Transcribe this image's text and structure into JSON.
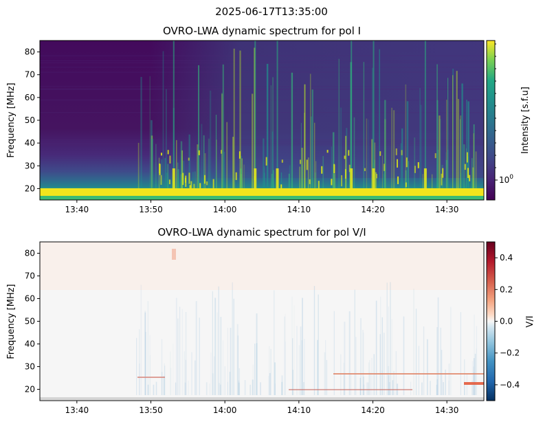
{
  "figure": {
    "suptitle": "2025-06-17T13:35:00"
  },
  "chart_data": [
    {
      "type": "heatmap",
      "title": "OVRO-LWA dynamic spectrum for pol I",
      "xlabel": "",
      "ylabel": "Frequency [MHz]",
      "x_range": [
        "13:35",
        "14:35"
      ],
      "ylim": [
        15,
        85
      ],
      "x_ticks": [
        "13:40",
        "13:50",
        "14:00",
        "14:10",
        "14:20",
        "14:30"
      ],
      "y_ticks": [
        20,
        30,
        40,
        50,
        60,
        70,
        80
      ],
      "colormap": "viridis",
      "colorbar": {
        "label": "Intensity [s.f.u]",
        "scale": "log",
        "tick_labels": [
          "10^0"
        ]
      },
      "features": {
        "bright_band_mhz": [
          15,
          19
        ],
        "burst_activity_start": "13:50",
        "strong_bursts": [
          "13:53",
          "14:04",
          "14:07",
          "14:17",
          "14:20",
          "14:27"
        ]
      }
    },
    {
      "type": "heatmap",
      "title": "OVRO-LWA dynamic spectrum for pol V/I",
      "xlabel": "",
      "ylabel": "Frequency [MHz]",
      "x_range": [
        "13:35",
        "14:35"
      ],
      "ylim": [
        15,
        85
      ],
      "x_ticks": [
        "13:40",
        "13:50",
        "14:00",
        "14:10",
        "14:20",
        "14:30"
      ],
      "y_ticks": [
        20,
        30,
        40,
        50,
        60,
        70,
        80
      ],
      "colormap": "RdBu_r",
      "colorbar": {
        "label": "V/I",
        "scale": "linear",
        "range": [
          -0.5,
          0.5
        ],
        "tick_labels": [
          "0.4",
          "0.2",
          "0.0",
          "−0.2",
          "−0.4"
        ]
      }
    }
  ],
  "colors": {
    "viridis_dark": "#440154",
    "viridis_mid": "#2f6a8d",
    "viridis_green": "#3cbb75",
    "viridis_yellow": "#fde725",
    "rdbu_red": "#67001f",
    "rdbu_blue": "#053061"
  }
}
